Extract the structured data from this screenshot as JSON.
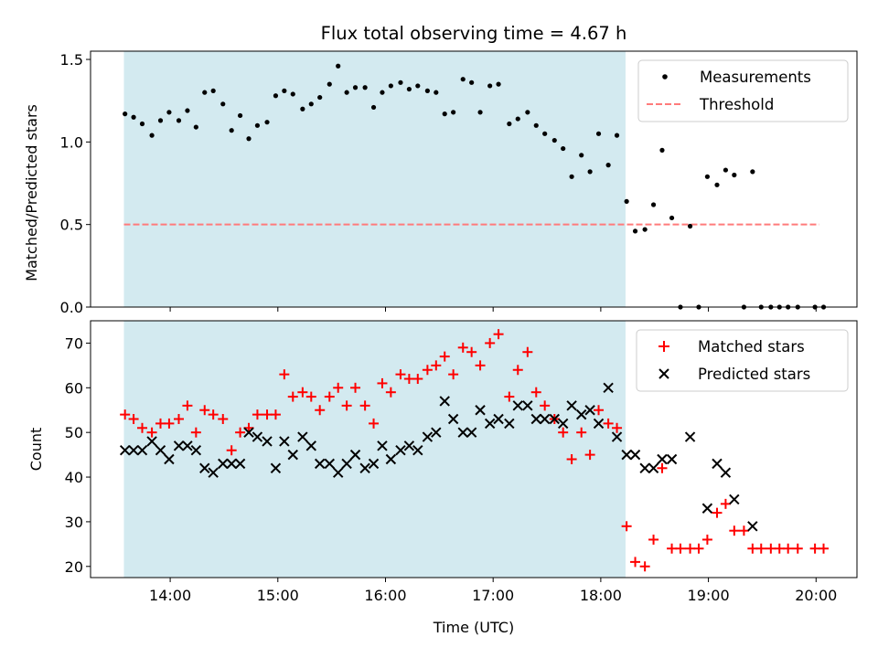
{
  "chart_data": [
    {
      "type": "scatter",
      "title": "Flux total observing time = 4.67 h",
      "xlabel": "",
      "ylabel": "Matched/Predicted stars",
      "ylim": [
        0,
        1.55
      ],
      "yticks": [
        "0.0",
        "0.5",
        "1.0",
        "1.5"
      ],
      "ytick_values": [
        0,
        0.5,
        1.0,
        1.5
      ],
      "xlim_hours": [
        13.26,
        20.38
      ],
      "shaded_span_hours": [
        13.57,
        18.23
      ],
      "shaded_color": "#d3eaf0",
      "grid": false,
      "legend": "top-right",
      "series": [
        {
          "name": "Measurements",
          "marker": "dot",
          "color": "#000000",
          "points": [
            [
              13.58,
              1.17
            ],
            [
              13.66,
              1.15
            ],
            [
              13.74,
              1.11
            ],
            [
              13.83,
              1.04
            ],
            [
              13.91,
              1.13
            ],
            [
              13.99,
              1.18
            ],
            [
              14.08,
              1.13
            ],
            [
              14.16,
              1.19
            ],
            [
              14.24,
              1.09
            ],
            [
              14.32,
              1.3
            ],
            [
              14.4,
              1.31
            ],
            [
              14.49,
              1.23
            ],
            [
              14.57,
              1.07
            ],
            [
              14.65,
              1.16
            ],
            [
              14.73,
              1.02
            ],
            [
              14.81,
              1.1
            ],
            [
              14.9,
              1.12
            ],
            [
              14.98,
              1.28
            ],
            [
              15.06,
              1.31
            ],
            [
              15.14,
              1.29
            ],
            [
              15.23,
              1.2
            ],
            [
              15.31,
              1.23
            ],
            [
              15.39,
              1.27
            ],
            [
              15.48,
              1.35
            ],
            [
              15.56,
              1.46
            ],
            [
              15.64,
              1.3
            ],
            [
              15.72,
              1.33
            ],
            [
              15.81,
              1.33
            ],
            [
              15.89,
              1.21
            ],
            [
              15.97,
              1.3
            ],
            [
              16.05,
              1.34
            ],
            [
              16.14,
              1.36
            ],
            [
              16.22,
              1.32
            ],
            [
              16.3,
              1.34
            ],
            [
              16.39,
              1.31
            ],
            [
              16.47,
              1.3
            ],
            [
              16.55,
              1.17
            ],
            [
              16.63,
              1.18
            ],
            [
              16.72,
              1.38
            ],
            [
              16.8,
              1.36
            ],
            [
              16.88,
              1.18
            ],
            [
              16.97,
              1.34
            ],
            [
              17.05,
              1.35
            ],
            [
              17.15,
              1.11
            ],
            [
              17.23,
              1.14
            ],
            [
              17.32,
              1.18
            ],
            [
              17.4,
              1.1
            ],
            [
              17.48,
              1.05
            ],
            [
              17.57,
              1.01
            ],
            [
              17.65,
              0.96
            ],
            [
              17.73,
              0.79
            ],
            [
              17.82,
              0.92
            ],
            [
              17.9,
              0.82
            ],
            [
              17.98,
              1.05
            ],
            [
              18.07,
              0.86
            ],
            [
              18.15,
              1.04
            ],
            [
              18.24,
              0.64
            ],
            [
              18.32,
              0.46
            ],
            [
              18.41,
              0.47
            ],
            [
              18.49,
              0.62
            ],
            [
              18.57,
              0.95
            ],
            [
              18.66,
              0.54
            ],
            [
              18.74,
              0.0
            ],
            [
              18.83,
              0.49
            ],
            [
              18.91,
              0.0
            ],
            [
              18.99,
              0.79
            ],
            [
              19.08,
              0.74
            ],
            [
              19.16,
              0.83
            ],
            [
              19.24,
              0.8
            ],
            [
              19.33,
              0.0
            ],
            [
              19.41,
              0.82
            ],
            [
              19.49,
              0.0
            ],
            [
              19.58,
              0.0
            ],
            [
              19.66,
              0.0
            ],
            [
              19.74,
              0.0
            ],
            [
              19.83,
              0.0
            ],
            [
              19.99,
              0.0
            ],
            [
              20.07,
              0.0
            ]
          ]
        },
        {
          "name": "Threshold",
          "marker": "dashed-line",
          "color": "#ff7b7b",
          "points": [
            [
              13.57,
              0.5
            ],
            [
              20.03,
              0.5
            ]
          ]
        }
      ]
    },
    {
      "type": "scatter",
      "title": "",
      "xlabel": "Time (UTC)",
      "ylabel": "Count",
      "ylim": [
        17.5,
        75
      ],
      "yticks": [
        "20",
        "30",
        "40",
        "50",
        "60",
        "70"
      ],
      "ytick_values": [
        20,
        30,
        40,
        50,
        60,
        70
      ],
      "xlim_hours": [
        13.26,
        20.38
      ],
      "xticks": [
        "14:00",
        "15:00",
        "16:00",
        "17:00",
        "18:00",
        "19:00",
        "20:00"
      ],
      "xtick_values": [
        14,
        15,
        16,
        17,
        18,
        19,
        20
      ],
      "shaded_span_hours": [
        13.57,
        18.23
      ],
      "shaded_color": "#d3eaf0",
      "grid": false,
      "legend": "top-right",
      "series": [
        {
          "name": "Matched stars",
          "marker": "plus",
          "color": "#ff0000",
          "points": [
            [
              13.58,
              54
            ],
            [
              13.66,
              53
            ],
            [
              13.74,
              51
            ],
            [
              13.83,
              50
            ],
            [
              13.91,
              52
            ],
            [
              13.99,
              52
            ],
            [
              14.08,
              53
            ],
            [
              14.16,
              56
            ],
            [
              14.24,
              50
            ],
            [
              14.32,
              55
            ],
            [
              14.4,
              54
            ],
            [
              14.49,
              53
            ],
            [
              14.57,
              46
            ],
            [
              14.65,
              50
            ],
            [
              14.73,
              51
            ],
            [
              14.81,
              54
            ],
            [
              14.9,
              54
            ],
            [
              14.98,
              54
            ],
            [
              15.06,
              63
            ],
            [
              15.14,
              58
            ],
            [
              15.23,
              59
            ],
            [
              15.31,
              58
            ],
            [
              15.39,
              55
            ],
            [
              15.48,
              58
            ],
            [
              15.56,
              60
            ],
            [
              15.64,
              56
            ],
            [
              15.72,
              60
            ],
            [
              15.81,
              56
            ],
            [
              15.89,
              52
            ],
            [
              15.97,
              61
            ],
            [
              16.05,
              59
            ],
            [
              16.14,
              63
            ],
            [
              16.22,
              62
            ],
            [
              16.3,
              62
            ],
            [
              16.39,
              64
            ],
            [
              16.47,
              65
            ],
            [
              16.55,
              67
            ],
            [
              16.63,
              63
            ],
            [
              16.72,
              69
            ],
            [
              16.8,
              68
            ],
            [
              16.88,
              65
            ],
            [
              16.97,
              70
            ],
            [
              17.05,
              72
            ],
            [
              17.15,
              58
            ],
            [
              17.23,
              64
            ],
            [
              17.32,
              68
            ],
            [
              17.4,
              59
            ],
            [
              17.48,
              56
            ],
            [
              17.57,
              53
            ],
            [
              17.65,
              50
            ],
            [
              17.73,
              44
            ],
            [
              17.82,
              50
            ],
            [
              17.9,
              45
            ],
            [
              17.98,
              55
            ],
            [
              18.07,
              52
            ],
            [
              18.15,
              51
            ],
            [
              18.24,
              29
            ],
            [
              18.32,
              21
            ],
            [
              18.41,
              20
            ],
            [
              18.49,
              26
            ],
            [
              18.57,
              42
            ],
            [
              18.66,
              24
            ],
            [
              18.74,
              24
            ],
            [
              18.83,
              24
            ],
            [
              18.91,
              24
            ],
            [
              18.99,
              26
            ],
            [
              19.08,
              32
            ],
            [
              19.16,
              34
            ],
            [
              19.24,
              28
            ],
            [
              19.33,
              28
            ],
            [
              19.41,
              24
            ],
            [
              19.49,
              24
            ],
            [
              19.58,
              24
            ],
            [
              19.66,
              24
            ],
            [
              19.74,
              24
            ],
            [
              19.83,
              24
            ],
            [
              19.99,
              24
            ],
            [
              20.07,
              24
            ]
          ]
        },
        {
          "name": "Predicted stars",
          "marker": "cross",
          "color": "#000000",
          "points": [
            [
              13.58,
              46
            ],
            [
              13.66,
              46
            ],
            [
              13.74,
              46
            ],
            [
              13.83,
              48
            ],
            [
              13.91,
              46
            ],
            [
              13.99,
              44
            ],
            [
              14.08,
              47
            ],
            [
              14.16,
              47
            ],
            [
              14.24,
              46
            ],
            [
              14.32,
              42
            ],
            [
              14.4,
              41
            ],
            [
              14.49,
              43
            ],
            [
              14.57,
              43
            ],
            [
              14.65,
              43
            ],
            [
              14.73,
              50
            ],
            [
              14.81,
              49
            ],
            [
              14.9,
              48
            ],
            [
              14.98,
              42
            ],
            [
              15.06,
              48
            ],
            [
              15.14,
              45
            ],
            [
              15.23,
              49
            ],
            [
              15.31,
              47
            ],
            [
              15.39,
              43
            ],
            [
              15.48,
              43
            ],
            [
              15.56,
              41
            ],
            [
              15.64,
              43
            ],
            [
              15.72,
              45
            ],
            [
              15.81,
              42
            ],
            [
              15.89,
              43
            ],
            [
              15.97,
              47
            ],
            [
              16.05,
              44
            ],
            [
              16.14,
              46
            ],
            [
              16.22,
              47
            ],
            [
              16.3,
              46
            ],
            [
              16.39,
              49
            ],
            [
              16.47,
              50
            ],
            [
              16.55,
              57
            ],
            [
              16.63,
              53
            ],
            [
              16.72,
              50
            ],
            [
              16.8,
              50
            ],
            [
              16.88,
              55
            ],
            [
              16.97,
              52
            ],
            [
              17.05,
              53
            ],
            [
              17.15,
              52
            ],
            [
              17.23,
              56
            ],
            [
              17.32,
              56
            ],
            [
              17.4,
              53
            ],
            [
              17.48,
              53
            ],
            [
              17.57,
              53
            ],
            [
              17.65,
              52
            ],
            [
              17.73,
              56
            ],
            [
              17.82,
              54
            ],
            [
              17.9,
              55
            ],
            [
              17.98,
              52
            ],
            [
              18.07,
              60
            ],
            [
              18.15,
              49
            ],
            [
              18.24,
              45
            ],
            [
              18.32,
              45
            ],
            [
              18.41,
              42
            ],
            [
              18.49,
              42
            ],
            [
              18.57,
              44
            ],
            [
              18.66,
              44
            ],
            [
              18.83,
              49
            ],
            [
              18.99,
              33
            ],
            [
              19.08,
              43
            ],
            [
              19.16,
              41
            ],
            [
              19.24,
              35
            ],
            [
              19.41,
              29
            ]
          ]
        }
      ]
    }
  ]
}
